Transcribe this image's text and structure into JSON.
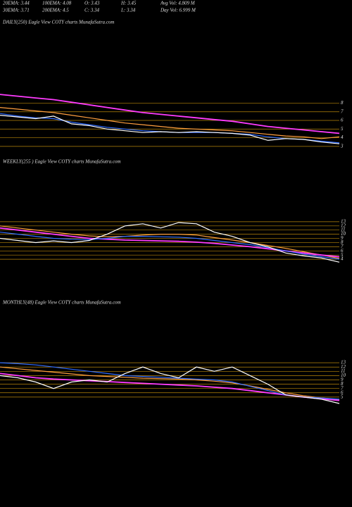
{
  "header": {
    "items": [
      "20EMA: 3.44",
      "100EMA: 4.08",
      "O: 3.43",
      "H: 3.45",
      "Avg Vol: 4.809 M",
      "30EMA: 3.71",
      "200EMA: 4.5",
      "C: 3.34",
      "L: 3.34",
      "Day Vol: 6.999 M"
    ]
  },
  "chart_data": [
    {
      "type": "line",
      "title": "DAILY(250) Eagle   View  COTY charts MunafaSutra.com",
      "ylim": [
        2.5,
        9.5
      ],
      "yticks": [
        8,
        7,
        6,
        5,
        4,
        3
      ],
      "grid": true,
      "grid_color": "#b8860b",
      "series": [
        {
          "color": "#ff9f3f",
          "values": [
            7.5,
            7.3,
            7.1,
            6.9,
            6.6,
            6.3,
            6.0,
            5.7,
            5.5,
            5.3,
            5.1,
            5.0,
            4.9,
            4.8,
            4.6,
            4.4,
            4.2,
            4.1,
            3.9,
            4.1
          ]
        },
        {
          "color": "#ff3bff",
          "values": [
            9.0,
            8.8,
            8.6,
            8.4,
            8.1,
            7.8,
            7.5,
            7.2,
            6.9,
            6.7,
            6.5,
            6.3,
            6.1,
            5.9,
            5.6,
            5.3,
            5.1,
            4.9,
            4.7,
            4.5
          ]
        },
        {
          "color": "#2f6bff",
          "values": [
            6.8,
            6.5,
            6.3,
            6.2,
            5.8,
            5.5,
            5.2,
            5.0,
            4.8,
            4.7,
            4.6,
            4.6,
            4.6,
            4.5,
            4.4,
            4.1,
            3.9,
            3.8,
            3.6,
            3.4
          ]
        },
        {
          "color": "#ffffff",
          "values": [
            6.6,
            6.4,
            6.2,
            6.5,
            5.6,
            5.4,
            5.0,
            4.8,
            4.6,
            4.7,
            4.6,
            4.7,
            4.6,
            4.5,
            4.3,
            3.7,
            3.9,
            3.8,
            3.5,
            3.3
          ]
        }
      ]
    },
    {
      "type": "line",
      "title": "WEEKLY(255   ) Eagle  View  COTY charts MunafaSutra.com",
      "ylim": [
        2.5,
        14.5
      ],
      "yticks": [
        13,
        12,
        11,
        10,
        9,
        8,
        7,
        6,
        5,
        4
      ],
      "grid": true,
      "grid_color": "#b8860b",
      "series": [
        {
          "color": "#ff9f3f",
          "values": [
            12,
            11.5,
            11,
            10.5,
            10,
            9.6,
            9.4,
            9.5,
            9.8,
            10,
            10,
            9.8,
            9.2,
            8.6,
            8,
            7.3,
            6.6,
            5.8,
            5,
            4.2
          ]
        },
        {
          "color": "#ff3bff",
          "values": [
            11.5,
            11,
            10.5,
            10,
            9.5,
            9,
            8.8,
            8.6,
            8.5,
            8.4,
            8.3,
            8.1,
            7.8,
            7.4,
            7,
            6.5,
            6,
            5.5,
            5,
            4.6
          ]
        },
        {
          "color": "#2f6bff",
          "values": [
            10.5,
            10,
            9.5,
            9,
            8.8,
            8.7,
            9,
            9.5,
            9.5,
            9.4,
            9.3,
            9,
            8.5,
            8,
            7.5,
            6.8,
            6,
            5.2,
            4.6,
            4.0
          ]
        },
        {
          "color": "#ffffff",
          "values": [
            9,
            8.5,
            8,
            8.4,
            8,
            8.5,
            10,
            12,
            12.5,
            11.5,
            12.8,
            12.5,
            10.5,
            9.5,
            8,
            7,
            5.5,
            4.8,
            4.3,
            3.3
          ]
        }
      ]
    },
    {
      "type": "line",
      "title": "MONTHLY(48) Eagle   View  COTY charts MunafaSutra.com",
      "ylim": [
        3.5,
        14.5
      ],
      "yticks": [
        13,
        12,
        11,
        10,
        9,
        8,
        7,
        6,
        5
      ],
      "grid": true,
      "grid_color": "#b8860b",
      "series": [
        {
          "color": "#ff9f3f",
          "values": [
            12,
            11.6,
            11.2,
            10.8,
            10.4,
            10,
            9.8,
            9.6,
            9.4,
            9.3,
            9.2,
            9,
            8.7,
            8.3,
            7.6,
            6.8,
            6,
            5.3,
            4.8,
            4.4
          ]
        },
        {
          "color": "#ff3bff",
          "values": [
            10.5,
            10,
            9.5,
            9.2,
            9,
            8.8,
            8.6,
            8.4,
            8.2,
            8,
            7.8,
            7.6,
            7.3,
            7,
            6.5,
            6,
            5.5,
            5,
            4.6,
            4.2
          ]
        },
        {
          "color": "#2f6bff",
          "values": [
            13,
            12.8,
            12.5,
            12,
            11.5,
            11,
            10.5,
            10,
            9.8,
            9.6,
            9.4,
            9.2,
            9,
            8.5,
            7.5,
            6.5,
            5.5,
            5,
            4.8,
            4.5
          ]
        },
        {
          "color": "#ffffff",
          "values": [
            10,
            9.5,
            8.5,
            7,
            8.5,
            9,
            8.5,
            10.5,
            12,
            10.5,
            9.5,
            12,
            11,
            12,
            10,
            8,
            5.5,
            5,
            4.5,
            3.5
          ]
        }
      ]
    }
  ]
}
